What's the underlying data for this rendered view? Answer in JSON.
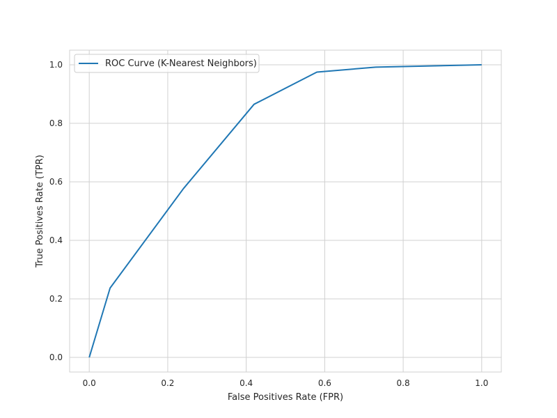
{
  "chart_data": {
    "type": "line",
    "title": "",
    "xlabel": "False Positives Rate (FPR)",
    "ylabel": "True Positives Rate (TPR)",
    "xlim": [
      -0.05,
      1.05
    ],
    "ylim": [
      -0.05,
      1.05
    ],
    "xticks": [
      0.0,
      0.2,
      0.4,
      0.6,
      0.8,
      1.0
    ],
    "yticks": [
      0.0,
      0.2,
      0.4,
      0.6,
      0.8,
      1.0
    ],
    "xtick_labels": [
      "0.0",
      "0.2",
      "0.4",
      "0.6",
      "0.8",
      "1.0"
    ],
    "ytick_labels": [
      "0.0",
      "0.2",
      "0.4",
      "0.6",
      "0.8",
      "1.0"
    ],
    "grid": true,
    "legend_position": "top-left",
    "series": [
      {
        "name": "ROC Curve (K-Nearest Neighbors)",
        "color": "#1f77b4",
        "x": [
          0.0,
          0.053,
          0.24,
          0.42,
          0.58,
          0.73,
          1.0
        ],
        "y": [
          0.0,
          0.237,
          0.577,
          0.865,
          0.975,
          0.992,
          1.0
        ]
      }
    ]
  }
}
